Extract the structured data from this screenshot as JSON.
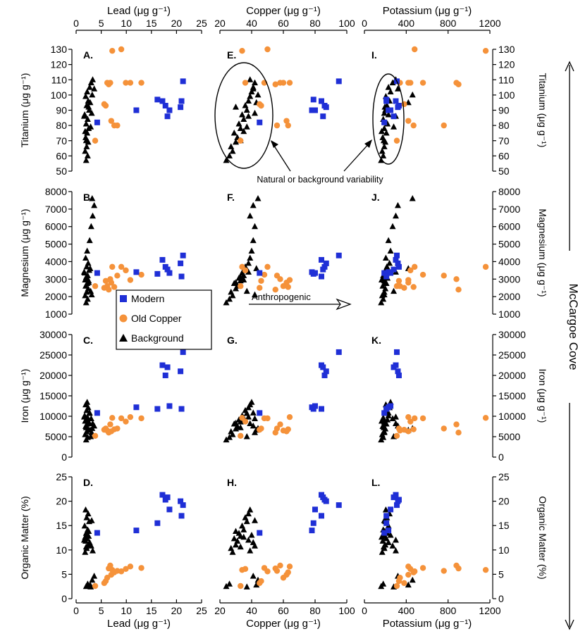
{
  "figure": {
    "side_label": "McCargoe Cove",
    "top_axis_titles": [
      "Lead (μg g⁻¹)",
      "Copper (μg g⁻¹)",
      "Potassium (μg g⁻¹)"
    ],
    "bottom_axis_titles": [
      "Lead (μg g⁻¹)",
      "Copper (μg g⁻¹)",
      "Potassium (μg g⁻¹)"
    ],
    "left_axis_titles": [
      "Titanium (μg g⁻¹)",
      "Magnesium (μg g⁻¹)",
      "Iron (μg g⁻¹)",
      "Organic Matter (%)"
    ],
    "right_axis_titles": [
      "Titanium (μg g⁻¹)",
      "Magnesium (μg g⁻¹)",
      "Iron (μg g⁻¹)",
      "Organic Matter (%)"
    ],
    "annotations": {
      "natural": "Natural or background variability",
      "anthropogenic": "Anthropogenic"
    },
    "legend": [
      {
        "label": "Modern",
        "color": "#1f2fd6",
        "marker": "square"
      },
      {
        "label": "Old Copper",
        "color": "#f5923a",
        "marker": "circle"
      },
      {
        "label": "Background",
        "color": "#000000",
        "marker": "triangle"
      }
    ]
  },
  "chart_data": {
    "type": "scatter",
    "columns": [
      {
        "variable": "Lead",
        "label": "Lead (μg g⁻¹)",
        "xlim": [
          0,
          25
        ],
        "ticks": [
          0,
          5,
          10,
          15,
          20,
          25
        ]
      },
      {
        "variable": "Copper",
        "label": "Copper (μg g⁻¹)",
        "xlim": [
          20,
          100
        ],
        "ticks": [
          20,
          40,
          60,
          80,
          100
        ]
      },
      {
        "variable": "Potassium",
        "label": "Potassium (μg g⁻¹)",
        "xlim": [
          0,
          1200
        ],
        "ticks": [
          0,
          400,
          800,
          1200
        ]
      }
    ],
    "rows": [
      {
        "variable": "Titanium",
        "label": "Titanium (μg g⁻¹)",
        "ylim": [
          50,
          130
        ],
        "ticks": [
          50,
          60,
          70,
          80,
          90,
          100,
          110,
          120,
          130
        ],
        "panels": [
          "A.",
          "E.",
          "I."
        ]
      },
      {
        "variable": "Magnesium",
        "label": "Magnesium (μg g⁻¹)",
        "ylim": [
          1000,
          8000
        ],
        "ticks": [
          1000,
          2000,
          3000,
          4000,
          5000,
          6000,
          7000,
          8000
        ],
        "panels": [
          "B.",
          "F.",
          "J."
        ]
      },
      {
        "variable": "Iron",
        "label": "Iron (μg g⁻¹)",
        "ylim": [
          0,
          30000
        ],
        "ticks": [
          0,
          5000,
          10000,
          15000,
          20000,
          25000,
          30000
        ],
        "panels": [
          "C.",
          "G.",
          "K."
        ]
      },
      {
        "variable": "OrganicMatter",
        "label": "Organic Matter (%)",
        "ylim": [
          0,
          25
        ],
        "ticks": [
          0,
          5,
          10,
          15,
          20,
          25
        ],
        "panels": [
          "D.",
          "H.",
          "L."
        ]
      }
    ],
    "series": [
      {
        "name": "Modern",
        "color": "#1f2fd6",
        "marker": "square",
        "samples": [
          {
            "Lead": 4.2,
            "Copper": 45,
            "Potassium": 190,
            "Titanium": 82,
            "Magnesium": 3350,
            "Iron": 10800,
            "OrganicMatter": 13.5
          },
          {
            "Lead": 12.0,
            "Copper": 78,
            "Potassium": 230,
            "Titanium": 90,
            "Magnesium": 3400,
            "Iron": 12200,
            "OrganicMatter": 14.0
          },
          {
            "Lead": 16.2,
            "Copper": 79,
            "Potassium": 210,
            "Titanium": 97,
            "Magnesium": 3300,
            "Iron": 11800,
            "OrganicMatter": 15.5
          },
          {
            "Lead": 17.2,
            "Copper": 84,
            "Potassium": 300,
            "Titanium": 96,
            "Magnesium": 4100,
            "Iron": 22500,
            "OrganicMatter": 21.3
          },
          {
            "Lead": 17.8,
            "Copper": 86,
            "Potassium": 330,
            "Titanium": 93,
            "Magnesium": 3700,
            "Iron": 20000,
            "OrganicMatter": 20.3
          },
          {
            "Lead": 18.2,
            "Copper": 85,
            "Potassium": 280,
            "Titanium": 86,
            "Magnesium": 3550,
            "Iron": 22000,
            "OrganicMatter": 20.8
          },
          {
            "Lead": 18.6,
            "Copper": 80,
            "Potassium": 250,
            "Titanium": 90,
            "Magnesium": 3350,
            "Iron": 12500,
            "OrganicMatter": 18.3
          },
          {
            "Lead": 21.0,
            "Copper": 84,
            "Potassium": 210,
            "Titanium": 96,
            "Magnesium": 3150,
            "Iron": 11800,
            "OrganicMatter": 17.0
          },
          {
            "Lead": 21.3,
            "Copper": 95,
            "Potassium": 310,
            "Titanium": 109,
            "Magnesium": 4350,
            "Iron": 25700,
            "OrganicMatter": 19.2
          },
          {
            "Lead": 20.8,
            "Copper": 87,
            "Potassium": 320,
            "Titanium": 92,
            "Magnesium": 3900,
            "Iron": 21000,
            "OrganicMatter": 20.0
          }
        ]
      },
      {
        "name": "Old Copper",
        "color": "#f5923a",
        "marker": "circle",
        "samples": [
          {
            "Lead": 3.8,
            "Copper": 33,
            "Potassium": 310,
            "Titanium": 70,
            "Magnesium": 2600,
            "Iron": 5200,
            "OrganicMatter": 2.6
          },
          {
            "Lead": 5.6,
            "Copper": 45,
            "Potassium": 380,
            "Titanium": 94,
            "Magnesium": 2500,
            "Iron": 6700,
            "OrganicMatter": 3.2
          },
          {
            "Lead": 5.9,
            "Copper": 46,
            "Potassium": 330,
            "Titanium": 93,
            "Magnesium": 2900,
            "Iron": 7000,
            "OrganicMatter": 3.6
          },
          {
            "Lead": 6.2,
            "Copper": 60,
            "Potassium": 340,
            "Titanium": 108,
            "Magnesium": 2600,
            "Iron": 6500,
            "OrganicMatter": 4.3
          },
          {
            "Lead": 7.0,
            "Copper": 62,
            "Potassium": 420,
            "Titanium": 83,
            "Magnesium": 2800,
            "Iron": 6300,
            "OrganicMatter": 4.9
          },
          {
            "Lead": 7.6,
            "Copper": 63,
            "Potassium": 470,
            "Titanium": 80,
            "Magnesium": 2550,
            "Iron": 6800,
            "OrganicMatter": 5.4
          },
          {
            "Lead": 9.0,
            "Copper": 50,
            "Potassium": 480,
            "Titanium": 130,
            "Magnesium": 3700,
            "Iron": 9500,
            "OrganicMatter": 5.6
          },
          {
            "Lead": 9.9,
            "Copper": 36,
            "Potassium": 440,
            "Titanium": 108,
            "Magnesium": 3500,
            "Iron": 8700,
            "OrganicMatter": 6.1
          },
          {
            "Lead": 10.8,
            "Copper": 64,
            "Potassium": 420,
            "Titanium": 108,
            "Magnesium": 2950,
            "Iron": 9800,
            "OrganicMatter": 6.6
          },
          {
            "Lead": 13.0,
            "Copper": 48,
            "Potassium": 560,
            "Titanium": 108,
            "Magnesium": 3250,
            "Iron": 9500,
            "OrganicMatter": 6.3
          },
          {
            "Lead": 6.8,
            "Copper": 58,
            "Potassium": 880,
            "Titanium": 108,
            "Magnesium": 3000,
            "Iron": 8000,
            "OrganicMatter": 6.8
          },
          {
            "Lead": 8.2,
            "Copper": 56,
            "Potassium": 760,
            "Titanium": 80,
            "Magnesium": 3200,
            "Iron": 7000,
            "OrganicMatter": 5.7
          },
          {
            "Lead": 7.2,
            "Copper": 34,
            "Potassium": 1160,
            "Titanium": 129,
            "Magnesium": 3700,
            "Iron": 9600,
            "OrganicMatter": 5.9
          },
          {
            "Lead": 6.5,
            "Copper": 55,
            "Potassium": 900,
            "Titanium": 107,
            "Magnesium": 2400,
            "Iron": 6000,
            "OrganicMatter": 6.2
          }
        ]
      },
      {
        "name": "Background",
        "color": "#000000",
        "marker": "triangle",
        "samples": [
          {
            "Lead": 2.0,
            "Copper": 24,
            "Potassium": 160,
            "Titanium": 57,
            "Magnesium": 1650,
            "Iron": 4200,
            "OrganicMatter": 2.5
          },
          {
            "Lead": 2.3,
            "Copper": 26,
            "Potassium": 180,
            "Titanium": 60,
            "Magnesium": 1850,
            "Iron": 4800,
            "OrganicMatter": 3.0
          },
          {
            "Lead": 1.8,
            "Copper": 28,
            "Potassium": 170,
            "Titanium": 63,
            "Magnesium": 2050,
            "Iron": 5500,
            "OrganicMatter": 9.5
          },
          {
            "Lead": 2.1,
            "Copper": 27,
            "Potassium": 190,
            "Titanium": 66,
            "Magnesium": 2250,
            "Iron": 6200,
            "OrganicMatter": 10.3
          },
          {
            "Lead": 2.4,
            "Copper": 30,
            "Potassium": 200,
            "Titanium": 69,
            "Magnesium": 2450,
            "Iron": 6900,
            "OrganicMatter": 11.0
          },
          {
            "Lead": 1.9,
            "Copper": 31,
            "Potassium": 175,
            "Titanium": 72,
            "Magnesium": 2600,
            "Iron": 7500,
            "OrganicMatter": 11.8
          },
          {
            "Lead": 2.2,
            "Copper": 29,
            "Potassium": 210,
            "Titanium": 75,
            "Magnesium": 2750,
            "Iron": 8100,
            "OrganicMatter": 12.3
          },
          {
            "Lead": 2.5,
            "Copper": 33,
            "Potassium": 190,
            "Titanium": 78,
            "Magnesium": 2900,
            "Iron": 8600,
            "OrganicMatter": 12.8
          },
          {
            "Lead": 2.0,
            "Copper": 32,
            "Potassium": 220,
            "Titanium": 81,
            "Magnesium": 3050,
            "Iron": 9100,
            "OrganicMatter": 13.4
          },
          {
            "Lead": 2.3,
            "Copper": 35,
            "Potassium": 180,
            "Titanium": 84,
            "Magnesium": 3200,
            "Iron": 9600,
            "OrganicMatter": 14.1
          },
          {
            "Lead": 1.7,
            "Copper": 34,
            "Potassium": 230,
            "Titanium": 87,
            "Magnesium": 3350,
            "Iron": 10100,
            "OrganicMatter": 14.9
          },
          {
            "Lead": 2.6,
            "Copper": 37,
            "Potassium": 200,
            "Titanium": 90,
            "Magnesium": 3500,
            "Iron": 10700,
            "OrganicMatter": 15.8
          },
          {
            "Lead": 2.1,
            "Copper": 36,
            "Potassium": 215,
            "Titanium": 93,
            "Magnesium": 3700,
            "Iron": 11400,
            "OrganicMatter": 16.6
          },
          {
            "Lead": 2.4,
            "Copper": 38,
            "Potassium": 240,
            "Titanium": 96,
            "Magnesium": 3900,
            "Iron": 12100,
            "OrganicMatter": 17.4
          },
          {
            "Lead": 1.9,
            "Copper": 39,
            "Potassium": 205,
            "Titanium": 99,
            "Magnesium": 4200,
            "Iron": 12800,
            "OrganicMatter": 18.2
          },
          {
            "Lead": 2.2,
            "Copper": 40,
            "Potassium": 250,
            "Titanium": 102,
            "Magnesium": 4600,
            "Iron": 13400,
            "OrganicMatter": 13.0
          },
          {
            "Lead": 2.7,
            "Copper": 41,
            "Potassium": 230,
            "Titanium": 105,
            "Magnesium": 5200,
            "Iron": 10800,
            "OrganicMatter": 11.5
          },
          {
            "Lead": 3.0,
            "Copper": 42,
            "Potassium": 270,
            "Titanium": 108,
            "Magnesium": 6000,
            "Iron": 9400,
            "OrganicMatter": 10.8
          },
          {
            "Lead": 3.3,
            "Copper": 39,
            "Potassium": 300,
            "Titanium": 110,
            "Magnesium": 6600,
            "Iron": 8200,
            "OrganicMatter": 9.8
          },
          {
            "Lead": 3.6,
            "Copper": 41,
            "Potassium": 320,
            "Titanium": 104,
            "Magnesium": 7200,
            "Iron": 7600,
            "OrganicMatter": 4.6
          },
          {
            "Lead": 3.2,
            "Copper": 44,
            "Potassium": 460,
            "Titanium": 100,
            "Magnesium": 7600,
            "Iron": 7000,
            "OrganicMatter": 3.8
          },
          {
            "Lead": 2.8,
            "Copper": 43,
            "Potassium": 420,
            "Titanium": 95,
            "Magnesium": 3600,
            "Iron": 6600,
            "OrganicMatter": 2.8
          },
          {
            "Lead": 1.6,
            "Copper": 38,
            "Potassium": 300,
            "Titanium": 86,
            "Magnesium": 3400,
            "Iron": 9800,
            "OrganicMatter": 12.0
          },
          {
            "Lead": 2.9,
            "Copper": 37,
            "Potassium": 280,
            "Titanium": 79,
            "Magnesium": 2300,
            "Iron": 5000,
            "OrganicMatter": 2.4
          },
          {
            "Lead": 3.1,
            "Copper": 42,
            "Potassium": 190,
            "Titanium": 88,
            "Magnesium": 2100,
            "Iron": 6000,
            "OrganicMatter": 16.0
          },
          {
            "Lead": 1.8,
            "Copper": 35,
            "Potassium": 165,
            "Titanium": 76,
            "Magnesium": 2950,
            "Iron": 8800,
            "OrganicMatter": 12.6
          },
          {
            "Lead": 2.0,
            "Copper": 33,
            "Potassium": 185,
            "Titanium": 70,
            "Magnesium": 3100,
            "Iron": 7200,
            "OrganicMatter": 10.6
          },
          {
            "Lead": 2.5,
            "Copper": 30,
            "Potassium": 195,
            "Titanium": 92,
            "Magnesium": 2800,
            "Iron": 8300,
            "OrganicMatter": 13.8
          }
        ]
      }
    ]
  }
}
